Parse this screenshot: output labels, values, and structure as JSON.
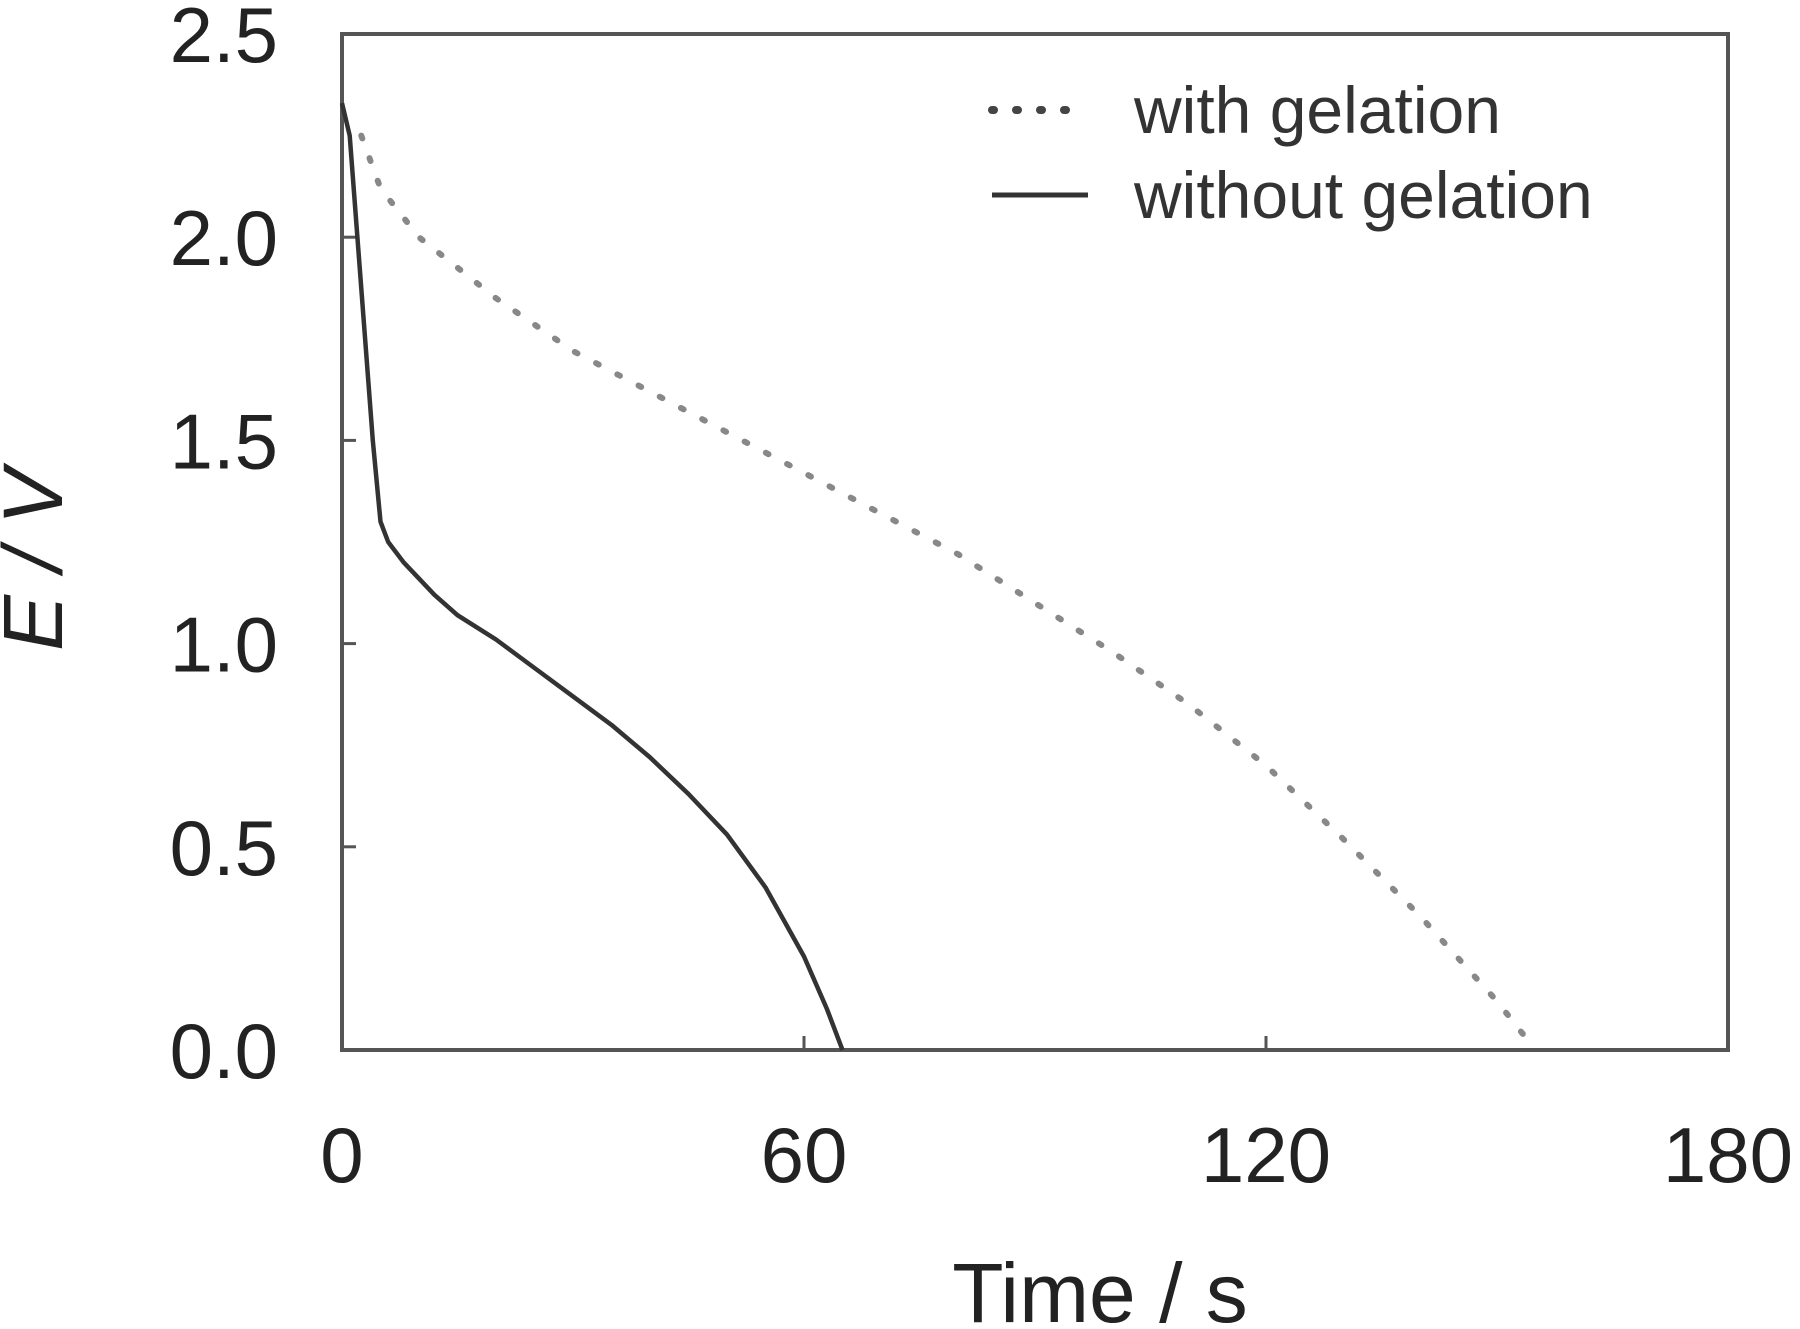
{
  "chart_data": {
    "type": "line",
    "xlabel": "Time / s",
    "ylabel": "E / V",
    "xlim": [
      0,
      180
    ],
    "ylim": [
      0,
      2.5
    ],
    "x_ticks": [
      0,
      60,
      120,
      180
    ],
    "x_tick_labels": [
      "0",
      "60",
      "120",
      "180"
    ],
    "y_ticks": [
      0,
      0.5,
      1.0,
      1.5,
      2.0,
      2.5
    ],
    "y_tick_labels": [
      "0.0",
      "0.5",
      "1.0",
      "1.5",
      "2.0",
      "2.5"
    ],
    "grid": false,
    "legend_position": "top-right",
    "series": [
      {
        "name": "with gelation",
        "style": "dotted",
        "color": "#888888",
        "points": [
          [
            2.5,
            2.25
          ],
          [
            5,
            2.12
          ],
          [
            10,
            2.0
          ],
          [
            20,
            1.85
          ],
          [
            30,
            1.72
          ],
          [
            40,
            1.62
          ],
          [
            50,
            1.52
          ],
          [
            60,
            1.42
          ],
          [
            70,
            1.32
          ],
          [
            80,
            1.22
          ],
          [
            90,
            1.1
          ],
          [
            100,
            0.98
          ],
          [
            110,
            0.85
          ],
          [
            120,
            0.7
          ],
          [
            130,
            0.52
          ],
          [
            140,
            0.33
          ],
          [
            150,
            0.12
          ],
          [
            155,
            0.0
          ]
        ]
      },
      {
        "name": "without gelation",
        "style": "solid",
        "color": "#333333",
        "points": [
          [
            0,
            2.33
          ],
          [
            1,
            2.25
          ],
          [
            2,
            2.0
          ],
          [
            3,
            1.75
          ],
          [
            4,
            1.5
          ],
          [
            5,
            1.3
          ],
          [
            6,
            1.25
          ],
          [
            8,
            1.2
          ],
          [
            12,
            1.12
          ],
          [
            15,
            1.07
          ],
          [
            20,
            1.01
          ],
          [
            25,
            0.94
          ],
          [
            30,
            0.87
          ],
          [
            35,
            0.8
          ],
          [
            40,
            0.72
          ],
          [
            45,
            0.63
          ],
          [
            50,
            0.53
          ],
          [
            55,
            0.4
          ],
          [
            60,
            0.23
          ],
          [
            63,
            0.1
          ],
          [
            65,
            0.0
          ]
        ]
      }
    ]
  }
}
